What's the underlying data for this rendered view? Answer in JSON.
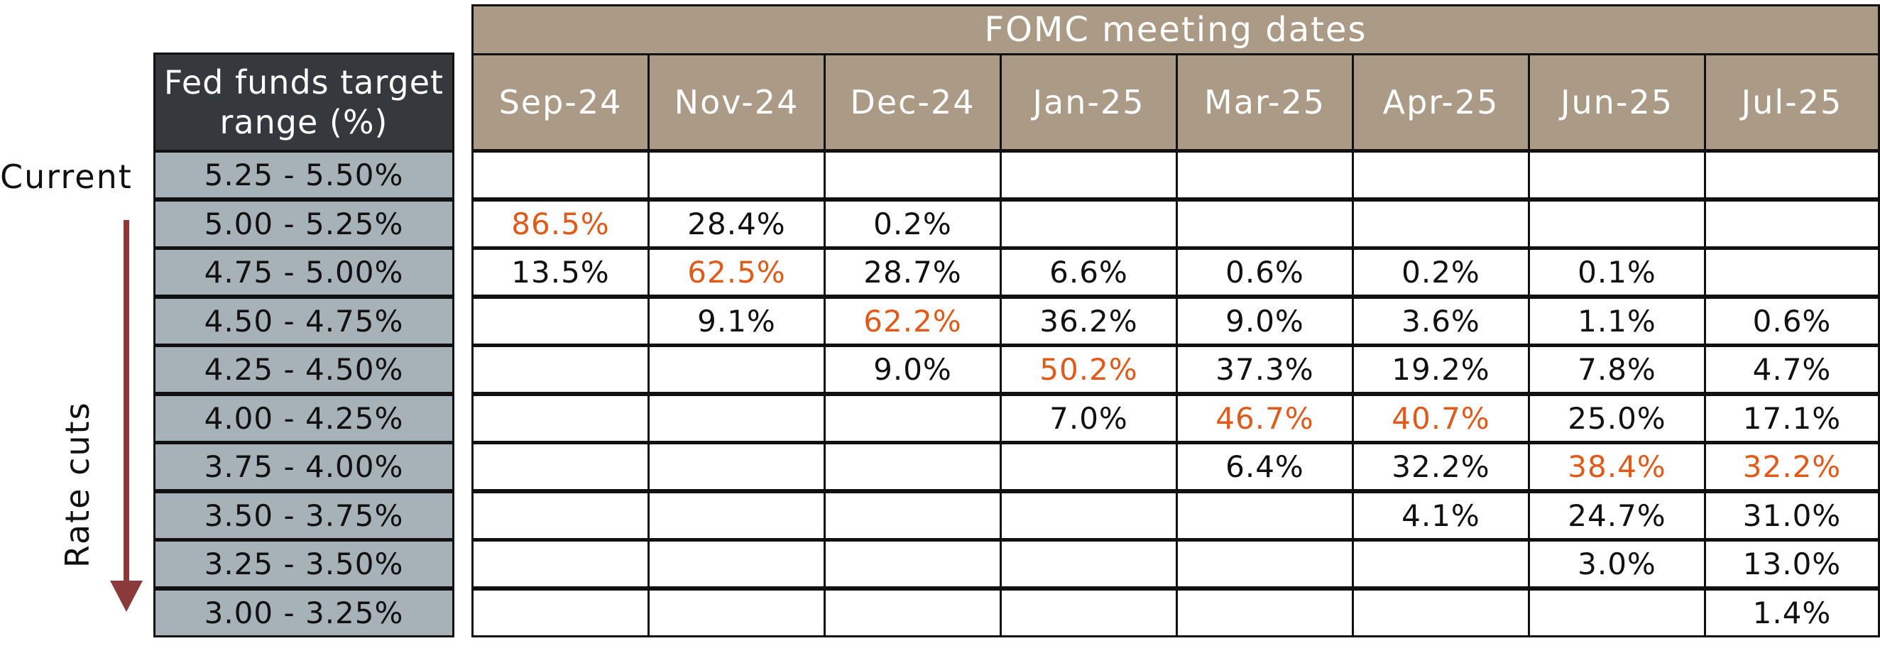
{
  "side_labels": {
    "current": "Current",
    "rate_cuts": "Rate cuts"
  },
  "colors": {
    "highlight": "#e05a1a",
    "header": "#ab9a85",
    "range_bg": "#a7b1b8",
    "range_header": "#35393d",
    "arrow": "#8b3a3a"
  },
  "chart_data": {
    "type": "table",
    "title": "FOMC meeting dates",
    "row_header": "Fed funds target range (%)",
    "columns": [
      "Sep-24",
      "Nov-24",
      "Dec-24",
      "Jan-25",
      "Mar-25",
      "Apr-25",
      "Jun-25",
      "Jul-25"
    ],
    "rows": [
      {
        "range": "5.25 - 5.50%",
        "values": [
          "",
          "",
          "",
          "",
          "",
          "",
          "",
          ""
        ]
      },
      {
        "range": "5.00 - 5.25%",
        "values": [
          "86.5%",
          "28.4%",
          "0.2%",
          "",
          "",
          "",
          "",
          ""
        ]
      },
      {
        "range": "4.75 - 5.00%",
        "values": [
          "13.5%",
          "62.5%",
          "28.7%",
          "6.6%",
          "0.6%",
          "0.2%",
          "0.1%",
          ""
        ]
      },
      {
        "range": "4.50 - 4.75%",
        "values": [
          "",
          "9.1%",
          "62.2%",
          "36.2%",
          "9.0%",
          "3.6%",
          "1.1%",
          "0.6%"
        ]
      },
      {
        "range": "4.25 - 4.50%",
        "values": [
          "",
          "",
          "9.0%",
          "50.2%",
          "37.3%",
          "19.2%",
          "7.8%",
          "4.7%"
        ]
      },
      {
        "range": "4.00 - 4.25%",
        "values": [
          "",
          "",
          "",
          "7.0%",
          "46.7%",
          "40.7%",
          "25.0%",
          "17.1%"
        ]
      },
      {
        "range": "3.75 - 4.00%",
        "values": [
          "",
          "",
          "",
          "",
          "6.4%",
          "32.2%",
          "38.4%",
          "32.2%"
        ]
      },
      {
        "range": "3.50 - 3.75%",
        "values": [
          "",
          "",
          "",
          "",
          "",
          "4.1%",
          "24.7%",
          "31.0%"
        ]
      },
      {
        "range": "3.25 - 3.50%",
        "values": [
          "",
          "",
          "",
          "",
          "",
          "",
          "3.0%",
          "13.0%"
        ]
      },
      {
        "range": "3.00 - 3.25%",
        "values": [
          "",
          "",
          "",
          "",
          "",
          "",
          "",
          "1.4%"
        ]
      }
    ],
    "highlighted": [
      [
        1,
        0
      ],
      [
        2,
        1
      ],
      [
        3,
        2
      ],
      [
        4,
        3
      ],
      [
        5,
        4
      ],
      [
        5,
        5
      ],
      [
        6,
        6
      ],
      [
        6,
        7
      ]
    ]
  }
}
